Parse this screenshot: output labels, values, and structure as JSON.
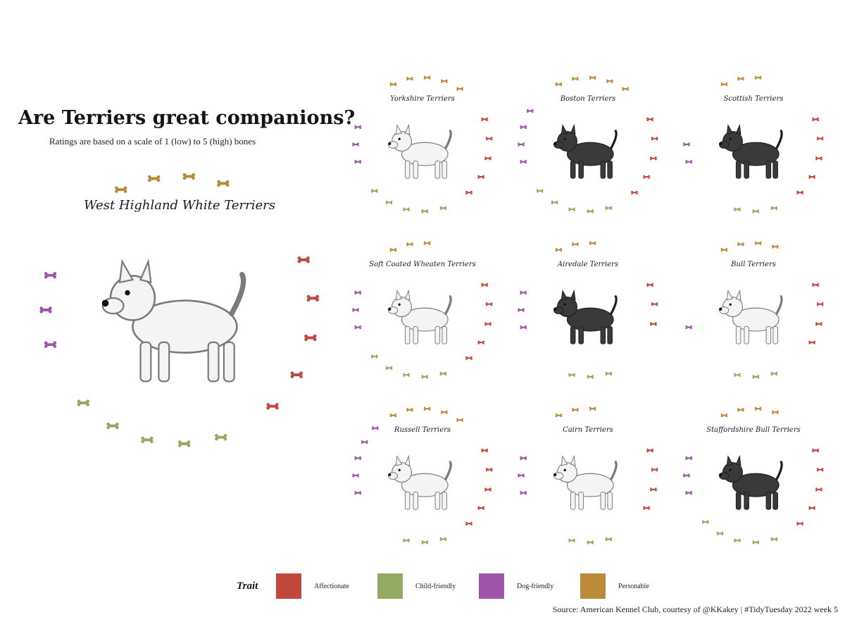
{
  "title": "Are Terriers great companions?",
  "subtitle": "Ratings are based on a scale of 1 (low) to 5 (high) bones",
  "source": "Source: American Kennel Club, courtesy of @KKakey | #TidyTuesday 2022 week 5",
  "legend": {
    "title": "Trait",
    "items": [
      {
        "key": "affectionate",
        "label": "Affectionate",
        "color": "#c0473b"
      },
      {
        "key": "child",
        "label": "Child-friendly",
        "color": "#93aa62"
      },
      {
        "key": "dog",
        "label": "Dog-friendly",
        "color": "#9e55a8"
      },
      {
        "key": "personable",
        "label": "Personable",
        "color": "#b98a38"
      }
    ]
  },
  "chart_data": {
    "type": "radial-pictogram",
    "scale": [
      1,
      5
    ],
    "unit": "bones",
    "traits": [
      "Affectionate",
      "Child-friendly",
      "Dog-friendly",
      "Personable"
    ],
    "breeds": [
      {
        "name": "West Highland White Terriers",
        "affectionate": 5,
        "child": 5,
        "dog": 3,
        "personable": 4,
        "featured": true
      },
      {
        "name": "Yorkshire Terriers",
        "affectionate": 5,
        "child": 5,
        "dog": 3,
        "personable": 5
      },
      {
        "name": "Boston Terriers",
        "affectionate": 5,
        "child": 5,
        "dog": 4,
        "personable": 5
      },
      {
        "name": "Scottish Terriers",
        "affectionate": 5,
        "child": 3,
        "dog": 2,
        "personable": 3
      },
      {
        "name": "Soft Coated Wheaten Terriers",
        "affectionate": 5,
        "child": 5,
        "dog": 3,
        "personable": 3
      },
      {
        "name": "Airedale Terriers",
        "affectionate": 3,
        "child": 3,
        "dog": 3,
        "personable": 3
      },
      {
        "name": "Bull Terriers",
        "affectionate": 4,
        "child": 3,
        "dog": 1,
        "personable": 4
      },
      {
        "name": "Russell Terriers",
        "affectionate": 5,
        "child": 3,
        "dog": 5,
        "personable": 5
      },
      {
        "name": "Cairn Terriers",
        "affectionate": 4,
        "child": 3,
        "dog": 3,
        "personable": 3
      },
      {
        "name": "Staffordshire Bull Terriers",
        "affectionate": 5,
        "child": 5,
        "dog": 3,
        "personable": 4
      }
    ]
  }
}
